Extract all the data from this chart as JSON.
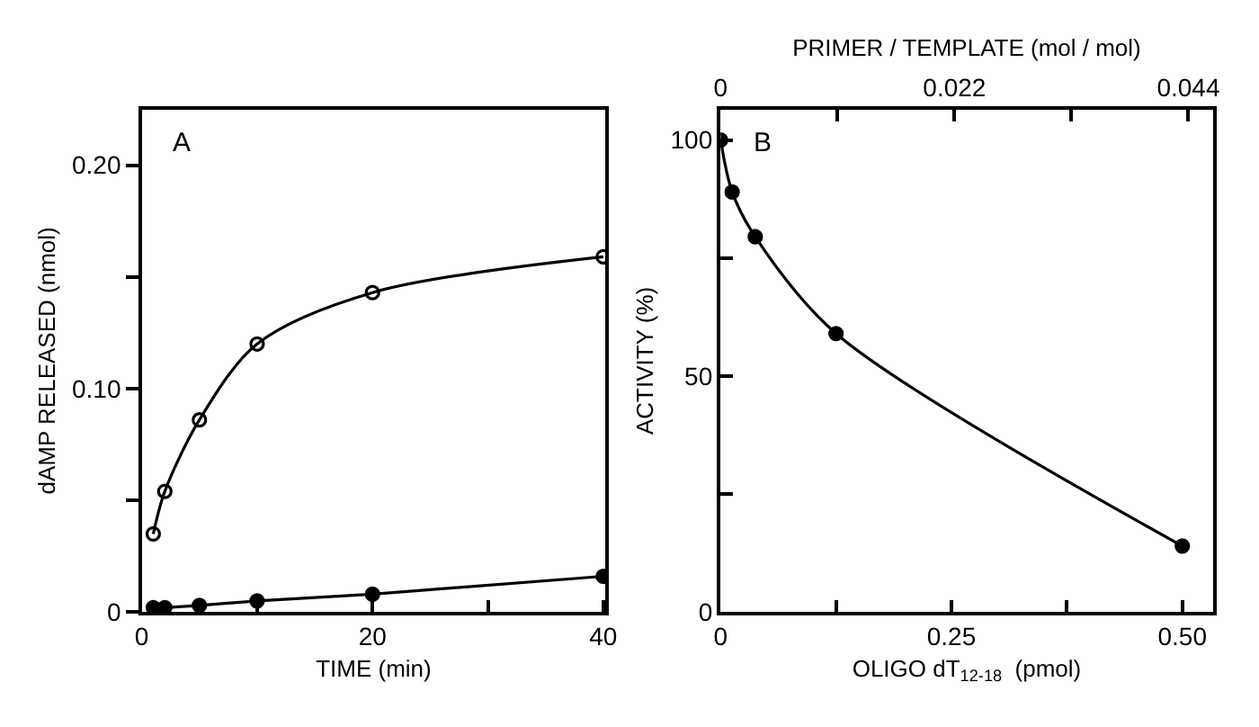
{
  "chart_data": [
    {
      "type": "line",
      "xlabel": "TIME (min)",
      "ylabel": "dAMP RELEASED (nmol)",
      "annotations": [
        "A"
      ],
      "series": [
        {
          "color": "#000000",
          "marker": "circle-open",
          "x": [
            1,
            2,
            5,
            10,
            20,
            40
          ],
          "values": [
            0.035,
            0.054,
            0.086,
            0.12,
            0.143,
            0.159
          ]
        },
        {
          "color": "#000000",
          "marker": "circle",
          "x": [
            1,
            2,
            5,
            10,
            20,
            40
          ],
          "values": [
            0.002,
            0.002,
            0.003,
            0.005,
            0.008,
            0.016
          ]
        }
      ],
      "xlim": [
        0,
        40.2
      ],
      "xticks": [
        0,
        {
          "value": 10,
          "label": null
        },
        20,
        {
          "value": 30,
          "label": null
        },
        40
      ],
      "ylim": [
        0,
        0.225
      ],
      "yticks": [
        0,
        {
          "value": 0.05,
          "label": null
        },
        {
          "value": 0.1,
          "label": "0.10"
        },
        {
          "value": 0.15,
          "label": null
        },
        {
          "value": 0.2,
          "label": "0.20"
        }
      ]
    },
    {
      "type": "line",
      "xlabel": "OLIGO dT$_{12-18}$  (pmol)",
      "x2label": "PRIMER / TEMPLATE (mol / mol)",
      "ylabel": "ACTIVITY (%)",
      "annotations": [
        "B"
      ],
      "series": [
        {
          "color": "#000000",
          "marker": "circle",
          "x": [
            0,
            0.0125,
            0.0375,
            0.125,
            0.5
          ],
          "values": [
            100,
            89,
            79.5,
            59,
            14
          ]
        }
      ],
      "xlim": [
        0,
        0.533
      ],
      "xticks": [
        0,
        {
          "value": 0.125,
          "label": null
        },
        0.25,
        {
          "value": 0.375,
          "label": null
        },
        {
          "value": 0.5,
          "label": "0.50"
        }
      ],
      "x2lim": [
        0,
        0.0463
      ],
      "x2ticks": [
        0,
        {
          "value": 0.011,
          "label": null
        },
        0.022,
        {
          "value": 0.033,
          "label": null
        },
        0.044
      ],
      "ylim": [
        0,
        106.5
      ],
      "yticks": [
        0,
        {
          "value": 25,
          "label": null
        },
        50,
        {
          "value": 75,
          "label": null
        },
        100
      ]
    }
  ]
}
